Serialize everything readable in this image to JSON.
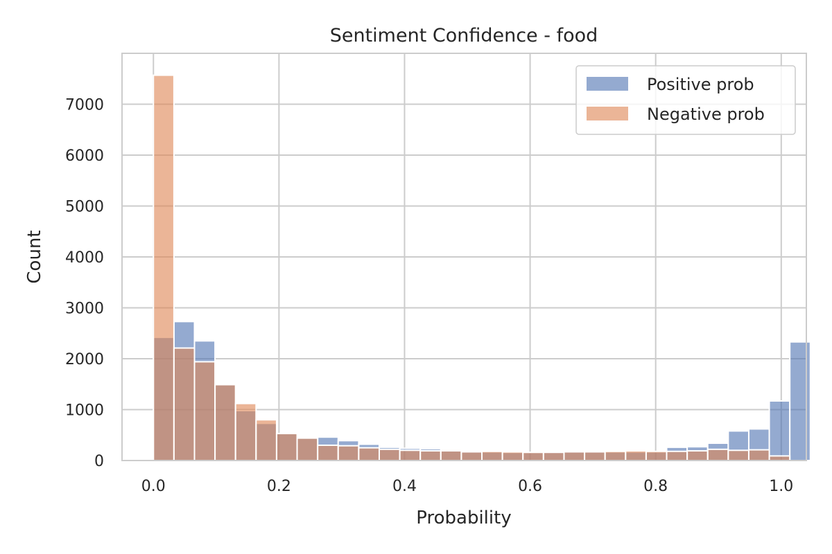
{
  "chart_data": {
    "type": "bar",
    "title": "Sentiment Confidence - food",
    "xlabel": "Probability",
    "ylabel": "Count",
    "xlim": [
      -0.05,
      1.04
    ],
    "ylim": [
      0,
      8000
    ],
    "x_ticks": [
      "0.0",
      "0.2",
      "0.4",
      "0.6",
      "0.8",
      "1.0"
    ],
    "y_ticks": [
      "0",
      "1000",
      "2000",
      "3000",
      "4000",
      "5000",
      "6000",
      "7000"
    ],
    "bin_width": 0.0327,
    "bin_start": 0.0,
    "grid": true,
    "legend_position": "top-right",
    "series": [
      {
        "name": "Positive prob",
        "color": "#4c72b0",
        "values": [
          2420,
          2730,
          2350,
          1500,
          980,
          730,
          530,
          460,
          460,
          390,
          320,
          260,
          240,
          230,
          210,
          180,
          170,
          160,
          160,
          170,
          180,
          180,
          170,
          170,
          170,
          260,
          270,
          340,
          580,
          620,
          1170,
          2330
        ]
      },
      {
        "name": "Negative prob",
        "color": "#dd8452",
        "values": [
          7570,
          2210,
          1940,
          1490,
          1120,
          800,
          530,
          440,
          300,
          290,
          250,
          220,
          200,
          190,
          190,
          170,
          180,
          170,
          160,
          160,
          170,
          170,
          180,
          190,
          180,
          180,
          190,
          220,
          200,
          210,
          90,
          0
        ]
      }
    ]
  }
}
